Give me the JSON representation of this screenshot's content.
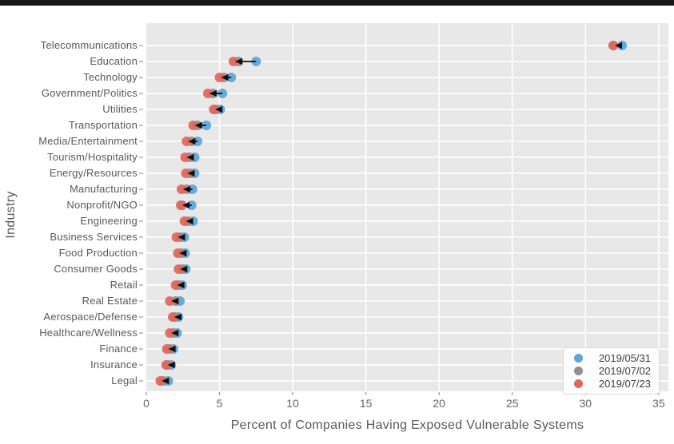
{
  "top_bar": {
    "color": "#171717"
  },
  "chart_data": {
    "type": "scatter",
    "subtype": "dot-plot-with-change-arrows",
    "title": "",
    "xlabel": "Percent of Companies Having Exposed Vulnerable Systems",
    "ylabel": "Industry",
    "xlim": [
      0,
      35.7
    ],
    "x_ticks": [
      0,
      5,
      10,
      15,
      20,
      25,
      30,
      35
    ],
    "grid": true,
    "plot_background": "#e8e8e8",
    "gridline_color": "#ffffff",
    "arrow_color": "#111111",
    "legend_position": "lower right",
    "categories": [
      "Telecommunications",
      "Education",
      "Technology",
      "Government/Politics",
      "Utilities",
      "Transportation",
      "Media/Entertainment",
      "Tourism/Hospitality",
      "Energy/Resources",
      "Manufacturing",
      "Nonprofit/NGO",
      "Engineering",
      "Business Services",
      "Food Production",
      "Consumer Goods",
      "Retail",
      "Real Estate",
      "Aerospace/Defense",
      "Healthcare/Wellness",
      "Finance",
      "Insurance",
      "Legal"
    ],
    "series": [
      {
        "name": "2019/05/31",
        "color": "#5da5da",
        "values": [
          32.5,
          7.5,
          5.8,
          5.2,
          5.05,
          4.1,
          3.5,
          3.3,
          3.3,
          3.15,
          3.1,
          3.2,
          2.6,
          2.65,
          2.7,
          2.45,
          2.3,
          2.2,
          2.1,
          1.85,
          1.7,
          1.5
        ]
      },
      {
        "name": "2019/07/02",
        "color": "#8f8f8f",
        "values": [
          31.9,
          6.3,
          5.3,
          4.55,
          4.75,
          3.5,
          3.1,
          2.95,
          3.0,
          2.75,
          2.45,
          2.85,
          2.3,
          2.4,
          2.45,
          2.2,
          2.0,
          1.95,
          1.85,
          1.6,
          1.45,
          1.15
        ]
      },
      {
        "name": "2019/07/23",
        "color": "#e0675c",
        "values": [
          31.9,
          5.95,
          5.0,
          4.2,
          4.6,
          3.2,
          2.75,
          2.65,
          2.7,
          2.4,
          2.35,
          2.6,
          2.05,
          2.15,
          2.2,
          2.0,
          1.6,
          1.8,
          1.6,
          1.4,
          1.35,
          0.95
        ]
      }
    ],
    "annotations": "black arrows point from the 2019/05/31 value leftward to the 2019/07/23 value on each row"
  }
}
